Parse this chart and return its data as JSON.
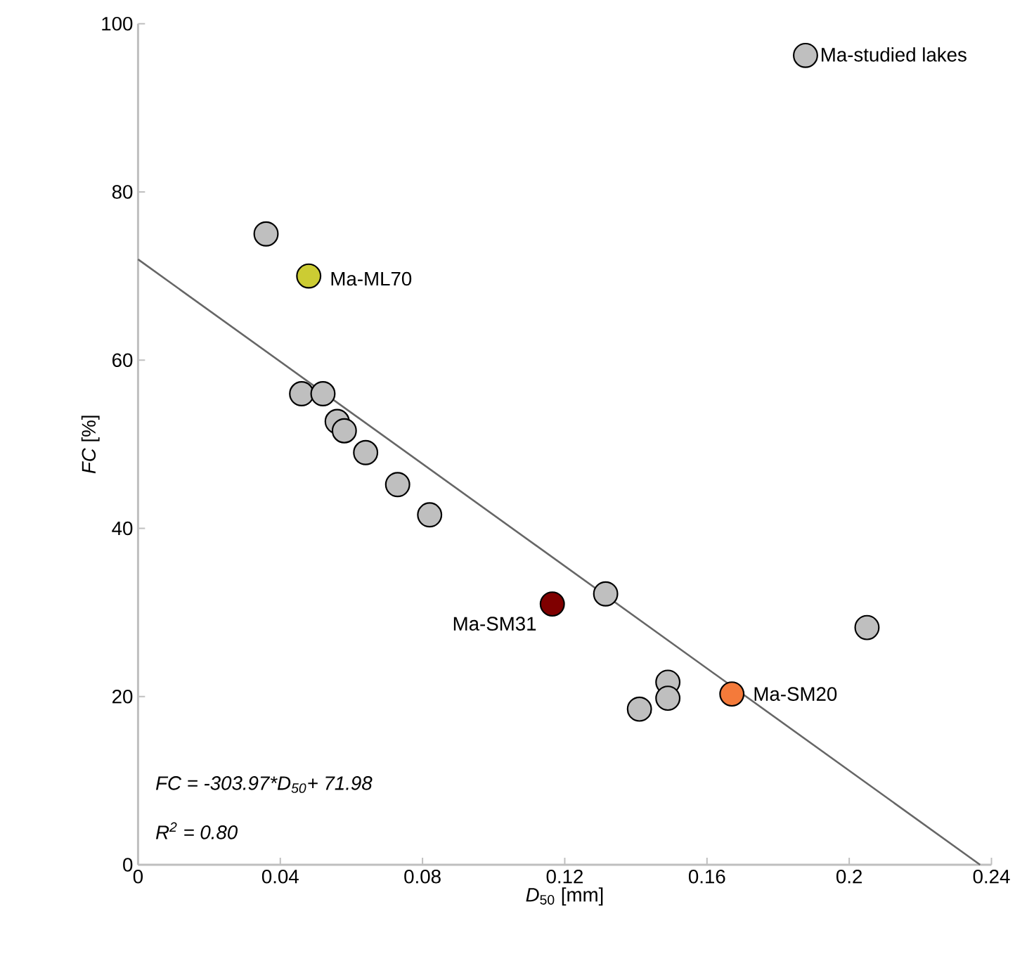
{
  "chart_data": {
    "type": "scatter",
    "xlabel": "*D*$_{50}$ [mm]",
    "ylabel": "*FC* [%]",
    "xlim": [
      0,
      0.24
    ],
    "ylim": [
      0,
      100
    ],
    "xticks": [
      0,
      0.04,
      0.08,
      0.12,
      0.16,
      0.2,
      0.24
    ],
    "yticks": [
      0,
      20,
      40,
      60,
      80,
      100
    ],
    "grid": false,
    "legend": "top right",
    "marker": "circle",
    "series": [
      {
        "name": "Ma-studied lakes",
        "color": "#bfbfbf",
        "x": [
          0.036,
          0.046,
          0.052,
          0.056,
          0.058,
          0.064,
          0.073,
          0.082,
          0.1315,
          0.205,
          0.149,
          0.149,
          0.141
        ],
        "values": [
          75,
          56,
          56,
          52.7,
          51.6,
          49,
          45.2,
          41.6,
          32.2,
          28.2,
          21.7,
          19.8,
          18.5
        ]
      },
      {
        "name": "Ma-ML70",
        "color": "#cccc33",
        "x": [
          0.048
        ],
        "values": [
          70
        ]
      },
      {
        "name": "Ma-SM31",
        "color": "#7f0000",
        "x": [
          0.1165
        ],
        "values": [
          31
        ]
      },
      {
        "name": "Ma-SM20",
        "color": "#f47a3a",
        "x": [
          0.167
        ],
        "values": [
          20.3
        ]
      },
      {
        "type": "line",
        "color": "#666666",
        "line_style": "solid",
        "marker": "none",
        "x": [
          0,
          0.2368
        ],
        "values": [
          71.98,
          0
        ]
      }
    ],
    "annotations": [
      "FC = -303.97*D$_{50}$+ 71.98",
      "R$^{2}$ = 0.80"
    ]
  }
}
